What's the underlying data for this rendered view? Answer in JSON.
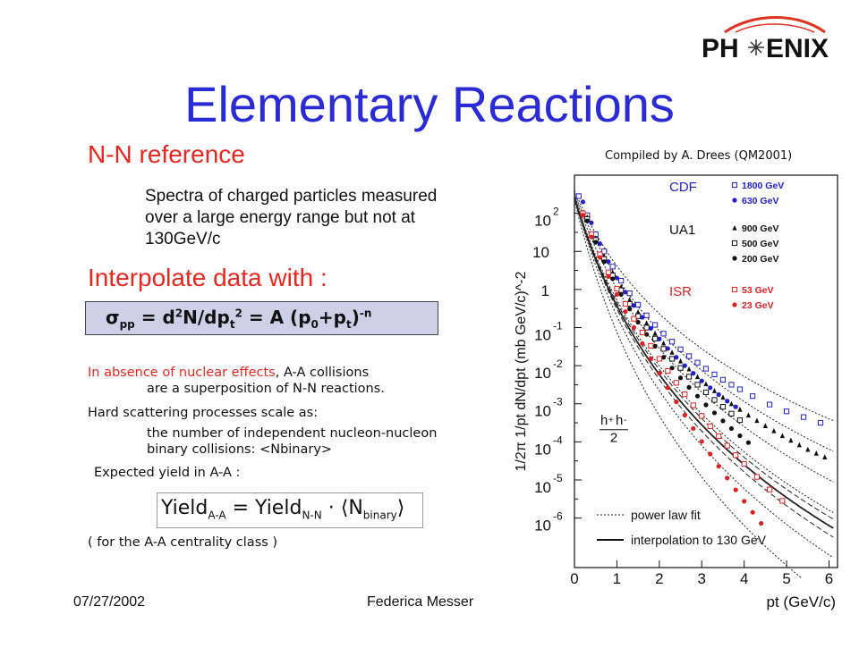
{
  "logo": {
    "left": "PH",
    "right": "ENIX"
  },
  "title": "Elementary Reactions",
  "nn_reference": {
    "heading": "N-N reference",
    "description": "Spectra of charged particles measured over a large energy range but not at 130GeV/c"
  },
  "interpolate": {
    "heading": "Interpolate data with :",
    "formula": {
      "sigma": "σ",
      "pp": "pp",
      "eq1": " = d",
      "two1": "2",
      "dn": "N/dp",
      "t1": "t",
      "two2": "2",
      "eq2": " = A (p",
      "zero": "0",
      "plus": "+p",
      "t2": "t",
      "close": ")",
      "minus_n": "-n"
    }
  },
  "notes": {
    "absence_red": "In absence of nuclear effects",
    "absence_rest": ", A-A collisions",
    "absence_line2": "are a superposition of N-N reactions.",
    "hard": "Hard scattering processes scale as:",
    "number": "the number of independent nucleon-nucleon binary collisions: <Nbinary>",
    "expected": "Expected yield in A-A :",
    "centrality": "( for the A-A centrality class )"
  },
  "yield_formula": {
    "y1": "Yield",
    "s1": "A-A",
    "eq": " = Yield",
    "s2": "N-N",
    "dot": " · ",
    "lang": "⟨",
    "n": "N",
    "s3": "binary",
    "rang": "⟩"
  },
  "footer": {
    "date": "07/27/2002",
    "author": "Federica Messer"
  },
  "compiled": "Compiled by A. Drees (QM2001)",
  "chart_data": {
    "type": "scatter",
    "xlabel": "p_t (GeV/c)",
    "ylabel": "1/2π 1/p_t dN/dp_t (mb GeV/c)^-2",
    "x_ticks": [
      "0",
      "1",
      "2",
      "3",
      "4",
      "5",
      "6"
    ],
    "y_ticks": [
      {
        "exp": "2",
        "v": 2
      },
      {
        "exp": "",
        "v": 1,
        "mant": "10"
      },
      {
        "exp": "",
        "v": 0,
        "mant": "1"
      },
      {
        "exp": "-1",
        "v": -1
      },
      {
        "exp": "-2",
        "v": -2
      },
      {
        "exp": "-3",
        "v": -3
      },
      {
        "exp": "-4",
        "v": -4
      },
      {
        "exp": "-5",
        "v": -5
      },
      {
        "exp": "-6",
        "v": -6
      }
    ],
    "xlim": [
      0,
      6.2
    ],
    "ylim_log10": [
      -7.3,
      3.0
    ],
    "legend_groups": [
      {
        "name": "CDF",
        "color": "#2222cc",
        "entries": [
          {
            "label": "1800 GeV",
            "marker": "open-square",
            "color": "#2222cc"
          },
          {
            "label": "630 GeV",
            "marker": "filled-circle",
            "color": "#2222cc"
          }
        ]
      },
      {
        "name": "UA1",
        "color": "#111111",
        "entries": [
          {
            "label": "900 GeV",
            "marker": "filled-triangle",
            "color": "#111111"
          },
          {
            "label": "500 GeV",
            "marker": "open-square",
            "color": "#111111"
          },
          {
            "label": "200 GeV",
            "marker": "filled-circle",
            "color": "#111111"
          }
        ]
      },
      {
        "name": "ISR",
        "color": "#dd2222",
        "entries": [
          {
            "label": "53 GeV",
            "marker": "open-square",
            "color": "#dd2222"
          },
          {
            "label": "23 GeV",
            "marker": "filled-circle",
            "color": "#dd2222"
          }
        ]
      }
    ],
    "inset_label": {
      "num": "h",
      "plus": "+",
      "plus2": "h",
      "minus": "-",
      "den": "2"
    },
    "line_legend": [
      {
        "label": "power law fit",
        "style": "dotted"
      },
      {
        "label": "interpolation to 130 GeV",
        "style": "solid"
      }
    ],
    "series": [
      {
        "name": "1800 GeV",
        "marker": "open-square",
        "color": "#2222cc",
        "x": [
          0.1,
          0.3,
          0.5,
          0.7,
          0.9,
          1.1,
          1.3,
          1.5,
          1.7,
          1.9,
          2.1,
          2.3,
          2.5,
          2.7,
          2.9,
          3.1,
          3.3,
          3.5,
          3.7,
          3.9,
          4.2,
          4.6,
          5.0,
          5.4,
          5.8
        ],
        "y": [
          2.45,
          1.95,
          1.45,
          1.0,
          0.6,
          0.23,
          -0.1,
          -0.4,
          -0.68,
          -0.93,
          -1.16,
          -1.37,
          -1.57,
          -1.75,
          -1.92,
          -2.08,
          -2.23,
          -2.37,
          -2.5,
          -2.62,
          -2.8,
          -3.02,
          -3.2,
          -3.35,
          -3.5
        ]
      },
      {
        "name": "630 GeV",
        "marker": "filled-circle",
        "color": "#2222cc",
        "x": [
          0.2,
          0.4,
          0.6,
          0.8,
          1.0,
          1.2,
          1.4,
          1.6,
          1.8,
          2.0,
          2.2,
          2.4,
          2.6,
          2.8,
          3.0,
          3.2,
          3.4,
          3.6,
          3.8
        ],
        "y": [
          2.3,
          1.75,
          1.2,
          0.73,
          0.3,
          -0.07,
          -0.42,
          -0.73,
          -1.02,
          -1.3,
          -1.55,
          -1.78,
          -2.0,
          -2.2,
          -2.4,
          -2.58,
          -2.76,
          -2.93,
          -3.08
        ]
      },
      {
        "name": "900 GeV",
        "marker": "filled-triangle",
        "color": "#111111",
        "x": [
          0.3,
          0.5,
          0.7,
          0.9,
          1.1,
          1.3,
          1.5,
          1.7,
          1.9,
          2.1,
          2.3,
          2.5,
          2.7,
          2.9,
          3.1,
          3.3,
          3.5,
          3.7,
          3.9,
          4.1,
          4.3,
          4.5,
          4.7,
          4.9,
          5.1,
          5.3,
          5.5,
          5.7,
          5.9
        ],
        "y": [
          1.9,
          1.35,
          0.87,
          0.45,
          0.07,
          -0.27,
          -0.59,
          -0.88,
          -1.15,
          -1.41,
          -1.65,
          -1.88,
          -2.09,
          -2.29,
          -2.48,
          -2.66,
          -2.83,
          -3.0,
          -3.15,
          -3.3,
          -3.44,
          -3.58,
          -3.71,
          -3.84,
          -3.96,
          -4.08,
          -4.2,
          -4.3,
          -4.4
        ]
      },
      {
        "name": "500 GeV",
        "marker": "open-square",
        "color": "#111111",
        "x": [
          0.3,
          0.5,
          0.7,
          0.9,
          1.1,
          1.3,
          1.5,
          1.7,
          1.9,
          2.1,
          2.3,
          2.5,
          2.7,
          2.9,
          3.1,
          3.3,
          3.5,
          3.7,
          3.9
        ],
        "y": [
          1.85,
          1.3,
          0.8,
          0.37,
          -0.02,
          -0.38,
          -0.7,
          -1.0,
          -1.29,
          -1.56,
          -1.82,
          -2.06,
          -2.29,
          -2.5,
          -2.7,
          -2.9,
          -3.08,
          -3.26,
          -3.43
        ]
      },
      {
        "name": "200 GeV",
        "marker": "filled-circle",
        "color": "#111111",
        "x": [
          0.3,
          0.5,
          0.7,
          0.9,
          1.1,
          1.3,
          1.5,
          1.7,
          1.9,
          2.1,
          2.3,
          2.5,
          2.7,
          2.9,
          3.1,
          3.3,
          3.5,
          3.7,
          3.9,
          4.1
        ],
        "y": [
          1.8,
          1.24,
          0.73,
          0.28,
          -0.13,
          -0.51,
          -0.86,
          -1.18,
          -1.49,
          -1.78,
          -2.06,
          -2.32,
          -2.57,
          -2.8,
          -3.03,
          -3.24,
          -3.45,
          -3.65,
          -3.84,
          -4.02
        ]
      },
      {
        "name": "53 GeV",
        "marker": "open-square",
        "color": "#dd2222",
        "x": [
          0.2,
          0.4,
          0.6,
          0.8,
          1.0,
          1.2,
          1.4,
          1.6,
          1.8,
          2.0,
          2.2,
          2.4,
          2.6,
          2.8,
          3.0,
          3.2,
          3.4,
          3.6,
          3.8,
          4.0,
          4.3,
          4.6,
          4.9
        ],
        "y": [
          2.0,
          1.45,
          0.92,
          0.45,
          0.02,
          -0.38,
          -0.77,
          -1.13,
          -1.48,
          -1.82,
          -2.14,
          -2.45,
          -2.75,
          -3.04,
          -3.32,
          -3.59,
          -3.85,
          -4.1,
          -4.35,
          -4.58,
          -4.92,
          -5.25,
          -5.55
        ]
      },
      {
        "name": "23 GeV",
        "marker": "filled-circle",
        "color": "#dd2222",
        "x": [
          0.2,
          0.4,
          0.6,
          0.8,
          1.0,
          1.2,
          1.4,
          1.6,
          1.8,
          2.0,
          2.2,
          2.4,
          2.6,
          2.8,
          3.0,
          3.2,
          3.4,
          3.6,
          3.8,
          4.0,
          4.2,
          4.4
        ],
        "y": [
          1.95,
          1.38,
          0.84,
          0.34,
          -0.13,
          -0.58,
          -1.0,
          -1.42,
          -1.82,
          -2.2,
          -2.58,
          -2.95,
          -3.3,
          -3.65,
          -3.99,
          -4.32,
          -4.64,
          -4.95,
          -5.26,
          -5.56,
          -5.85,
          -6.14
        ]
      }
    ],
    "curves": [
      {
        "style": "dotted",
        "p0": 1.3,
        "n": 8.0,
        "A": 2.6
      },
      {
        "style": "dotted",
        "p0": 1.3,
        "n": 9.0,
        "A": 2.55
      },
      {
        "style": "dotted",
        "p0": 1.3,
        "n": 10.0,
        "A": 2.5
      },
      {
        "style": "dotted",
        "p0": 1.3,
        "n": 11.0,
        "A": 2.45
      },
      {
        "style": "dotted",
        "p0": 1.3,
        "n": 12.5,
        "A": 2.4
      },
      {
        "style": "dotted",
        "p0": 1.3,
        "n": 14.0,
        "A": 2.35
      },
      {
        "style": "solid",
        "p0": 1.3,
        "n": 11.5,
        "A": 2.42
      },
      {
        "style": "dashed",
        "p0": 1.3,
        "n": 11.2,
        "A": 2.43
      },
      {
        "style": "dashed",
        "p0": 1.3,
        "n": 11.8,
        "A": 2.41
      }
    ]
  }
}
